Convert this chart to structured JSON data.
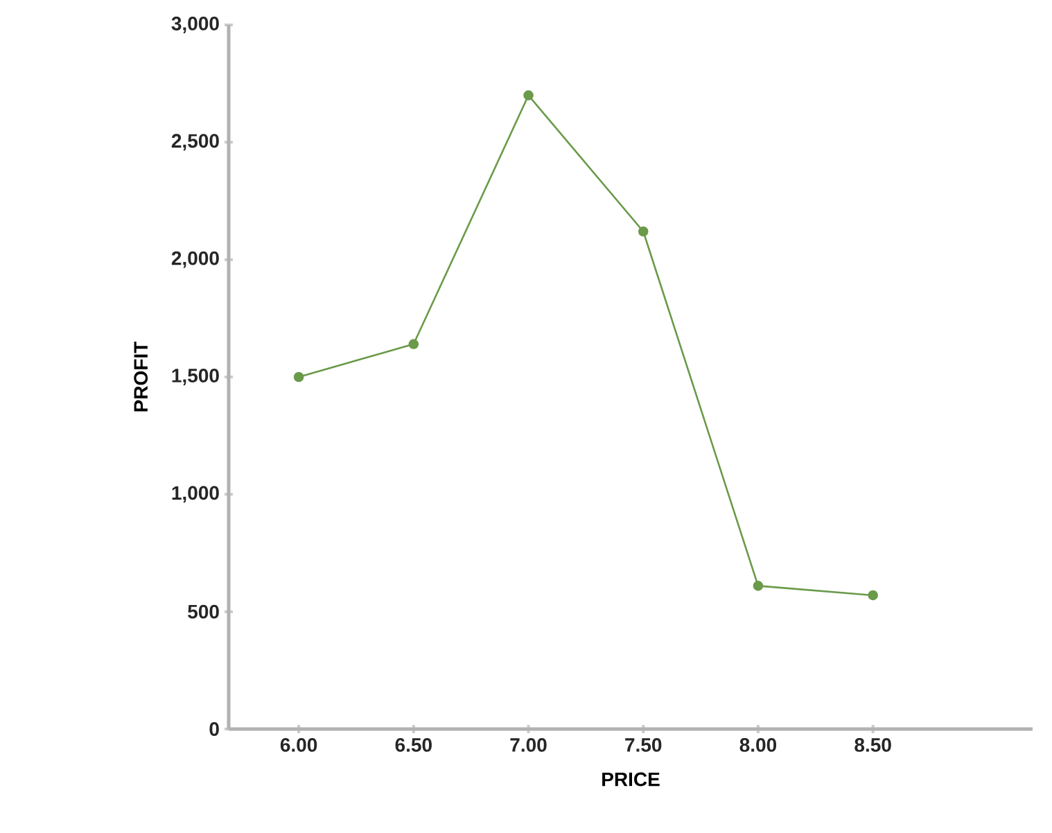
{
  "chart_data": {
    "type": "line",
    "xlabel": "PRICE",
    "ylabel": "PROFIT",
    "categories": [
      "6.00",
      "6.50",
      "7.00",
      "7.50",
      "8.00",
      "8.50"
    ],
    "series": [
      {
        "color": "#6a9a4a",
        "values": [
          1500,
          1640,
          2700,
          2120,
          610,
          570
        ]
      }
    ],
    "ylim": [
      0,
      3000
    ],
    "yticks": [
      {
        "value": 0,
        "label": "0"
      },
      500,
      {
        "value": 1000,
        "label": "1,000"
      },
      {
        "value": 1500,
        "label": "1,500"
      },
      {
        "value": 2000,
        "label": "2,000"
      },
      {
        "value": 2500,
        "label": "2,500"
      },
      {
        "value": 3000,
        "label": "3,000"
      }
    ],
    "marker": "circle",
    "line_style": "solid"
  }
}
